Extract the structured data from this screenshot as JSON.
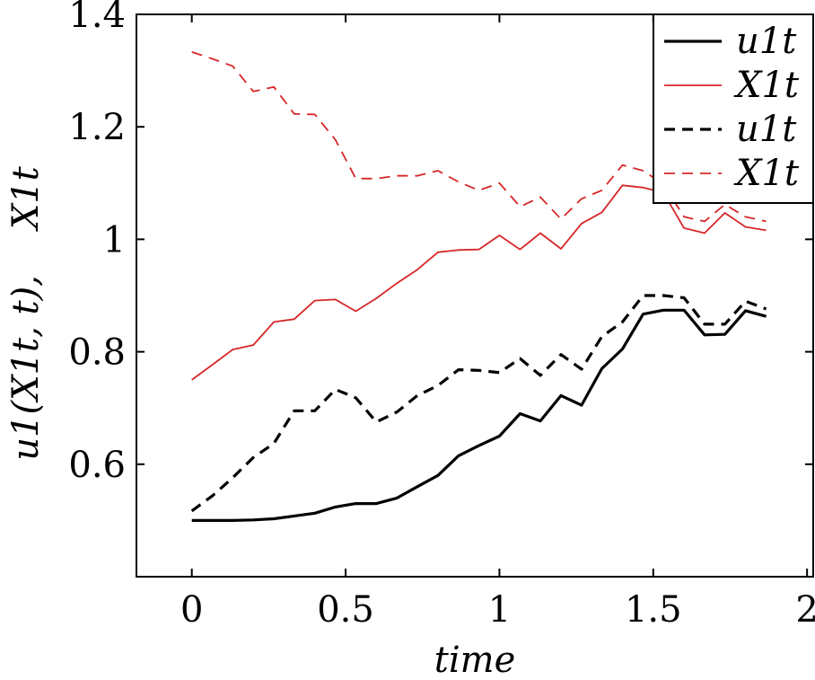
{
  "chart_data": {
    "type": "line",
    "title": "",
    "xlabel": "time",
    "ylabel": "u1(X1t, t),    X1t",
    "xlim": [
      -0.18,
      2.02
    ],
    "ylim": [
      0.4,
      1.4
    ],
    "xticks": [
      0,
      0.5,
      1,
      1.5,
      2
    ],
    "xtick_labels": [
      "0",
      "0.5",
      "1",
      "1.5",
      "2"
    ],
    "yticks": [
      0.6,
      0.8,
      1.0,
      1.2,
      1.4
    ],
    "ytick_labels": [
      "0.6",
      "0.8",
      "1",
      "1.2",
      "1.4"
    ],
    "grid": false,
    "legend_position": "top-right",
    "series": [
      {
        "name": "u1t",
        "color": "#000000",
        "style": "solid-thick",
        "x": [
          0,
          0.067,
          0.133,
          0.2,
          0.267,
          0.333,
          0.4,
          0.467,
          0.533,
          0.6,
          0.667,
          0.733,
          0.8,
          0.867,
          0.933,
          1.0,
          1.067,
          1.133,
          1.2,
          1.267,
          1.333,
          1.4,
          1.467,
          1.533,
          1.6,
          1.667,
          1.733,
          1.8,
          1.867
        ],
        "values": [
          0.5,
          0.5,
          0.5,
          0.501,
          0.503,
          0.508,
          0.513,
          0.524,
          0.53,
          0.53,
          0.54,
          0.56,
          0.58,
          0.615,
          0.633,
          0.65,
          0.69,
          0.677,
          0.722,
          0.705,
          0.77,
          0.805,
          0.867,
          0.874,
          0.874,
          0.83,
          0.831,
          0.873,
          0.863
        ]
      },
      {
        "name": "X1t",
        "color": "#d62728",
        "style": "solid-thin",
        "x": [
          0,
          0.067,
          0.133,
          0.2,
          0.267,
          0.333,
          0.4,
          0.467,
          0.533,
          0.6,
          0.667,
          0.733,
          0.8,
          0.867,
          0.933,
          1.0,
          1.067,
          1.133,
          1.2,
          1.267,
          1.333,
          1.4,
          1.467,
          1.533,
          1.6,
          1.667,
          1.733,
          1.8,
          1.867
        ],
        "values": [
          0.75,
          0.777,
          0.804,
          0.812,
          0.853,
          0.858,
          0.891,
          0.893,
          0.872,
          0.895,
          0.922,
          0.946,
          0.977,
          0.981,
          0.982,
          1.007,
          0.982,
          1.011,
          0.983,
          1.028,
          1.048,
          1.096,
          1.092,
          1.083,
          1.02,
          1.011,
          1.047,
          1.022,
          1.016
        ]
      },
      {
        "name": "u1t",
        "color": "#000000",
        "style": "dashed-thick",
        "x": [
          0,
          0.067,
          0.133,
          0.2,
          0.267,
          0.333,
          0.4,
          0.467,
          0.533,
          0.6,
          0.667,
          0.733,
          0.8,
          0.867,
          0.933,
          1.0,
          1.067,
          1.133,
          1.2,
          1.267,
          1.333,
          1.4,
          1.467,
          1.533,
          1.6,
          1.667,
          1.733,
          1.8,
          1.867
        ],
        "values": [
          0.517,
          0.544,
          0.576,
          0.612,
          0.637,
          0.695,
          0.695,
          0.733,
          0.718,
          0.675,
          0.693,
          0.722,
          0.74,
          0.768,
          0.767,
          0.763,
          0.788,
          0.758,
          0.795,
          0.769,
          0.827,
          0.853,
          0.9,
          0.9,
          0.896,
          0.849,
          0.849,
          0.89,
          0.876
        ]
      },
      {
        "name": "X1t",
        "color": "#d62728",
        "style": "dashed-thin",
        "x": [
          0,
          0.067,
          0.133,
          0.2,
          0.267,
          0.333,
          0.4,
          0.467,
          0.533,
          0.6,
          0.667,
          0.733,
          0.8,
          0.867,
          0.933,
          1.0,
          1.067,
          1.133,
          1.2,
          1.267,
          1.333,
          1.4,
          1.467,
          1.533,
          1.6,
          1.667,
          1.733,
          1.8,
          1.867
        ],
        "values": [
          1.333,
          1.321,
          1.308,
          1.263,
          1.271,
          1.223,
          1.222,
          1.177,
          1.108,
          1.108,
          1.113,
          1.113,
          1.122,
          1.102,
          1.087,
          1.1,
          1.058,
          1.075,
          1.036,
          1.072,
          1.087,
          1.132,
          1.122,
          1.098,
          1.04,
          1.032,
          1.062,
          1.04,
          1.032
        ]
      }
    ]
  }
}
